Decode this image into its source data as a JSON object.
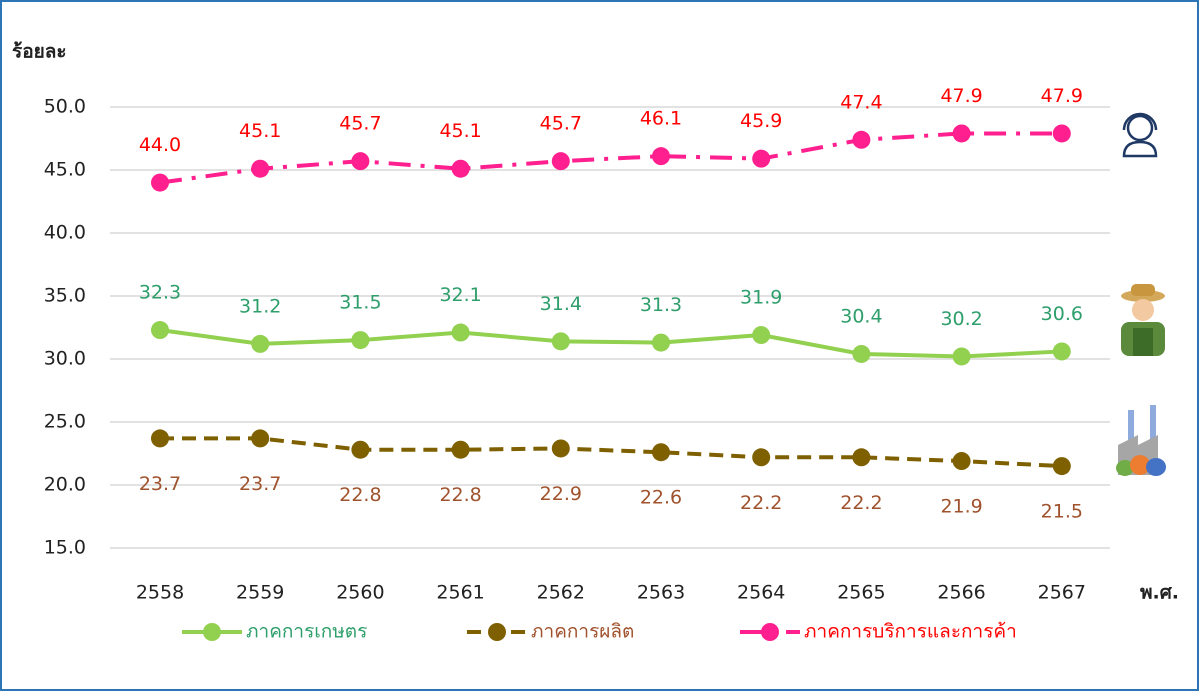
{
  "chart_data": {
    "type": "line",
    "y_label": "ร้อยละ",
    "x_label": "พ.ศ.",
    "categories": [
      "2558",
      "2559",
      "2560",
      "2561",
      "2562",
      "2563",
      "2564",
      "2565",
      "2566",
      "2567"
    ],
    "ylim": [
      15,
      50
    ],
    "yticks": [
      {
        "value": 15,
        "label": "15.0"
      },
      {
        "value": 20,
        "label": "20.0"
      },
      {
        "value": 25,
        "label": "25.0"
      },
      {
        "value": 30,
        "label": "30.0"
      },
      {
        "value": 35,
        "label": "35.0"
      },
      {
        "value": 40,
        "label": "40.0"
      },
      {
        "value": 45,
        "label": "45.0"
      },
      {
        "value": 50,
        "label": "50.0"
      }
    ],
    "grid": true,
    "series": [
      {
        "name": "ภาคการเกษตร",
        "color": "#92d050",
        "label_color": "#2e9e6b",
        "line_style": "solid",
        "label_position": "above",
        "values": [
          32.3,
          31.2,
          31.5,
          32.1,
          31.4,
          31.3,
          31.9,
          30.4,
          30.2,
          30.6
        ],
        "value_labels": [
          "32.3",
          "31.2",
          "31.5",
          "32.1",
          "31.4",
          "31.3",
          "31.9",
          "30.4",
          "30.2",
          "30.6"
        ]
      },
      {
        "name": "ภาคการผลิต",
        "color": "#7f6000",
        "label_color": "#a0522d",
        "line_style": "dashed",
        "label_position": "below",
        "values": [
          23.7,
          23.7,
          22.8,
          22.8,
          22.9,
          22.6,
          22.2,
          22.2,
          21.9,
          21.5
        ],
        "value_labels": [
          "23.7",
          "23.7",
          "22.8",
          "22.8",
          "22.9",
          "22.6",
          "22.2",
          "22.2",
          "21.9",
          "21.5"
        ]
      },
      {
        "name": "ภาคการบริการและการค้า",
        "color": "#ff1f8e",
        "label_color": "#ff0000",
        "line_style": "dashdot",
        "label_position": "above",
        "values": [
          44.0,
          45.1,
          45.7,
          45.1,
          45.7,
          46.1,
          45.9,
          47.4,
          47.9,
          47.9
        ],
        "value_labels": [
          "44.0",
          "45.1",
          "45.7",
          "45.1",
          "45.7",
          "46.1",
          "45.9",
          "47.4",
          "47.9",
          "47.9"
        ]
      }
    ]
  }
}
